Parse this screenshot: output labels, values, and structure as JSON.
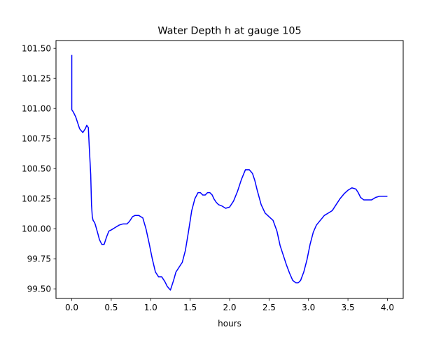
{
  "chart_data": {
    "type": "line",
    "title": "Water Depth h at gauge 105",
    "xlabel": "hours",
    "ylabel": "",
    "xlim": [
      -0.2,
      4.2
    ],
    "ylim": [
      99.42,
      101.565
    ],
    "xticks": [
      0.0,
      0.5,
      1.0,
      1.5,
      2.0,
      2.5,
      3.0,
      3.5,
      4.0
    ],
    "xtick_labels": [
      "0.0",
      "0.5",
      "1.0",
      "1.5",
      "2.0",
      "2.5",
      "3.0",
      "3.5",
      "4.0"
    ],
    "yticks": [
      99.5,
      99.75,
      100.0,
      100.25,
      100.5,
      100.75,
      101.0,
      101.25,
      101.5
    ],
    "ytick_labels": [
      "99.50",
      "99.75",
      "100.00",
      "100.25",
      "100.50",
      "100.75",
      "101.00",
      "101.25",
      "101.50"
    ],
    "grid": false,
    "legend": "none",
    "series": [
      {
        "color": "#0000ff",
        "x": [
          0.0,
          0.0,
          0.02,
          0.05,
          0.1,
          0.14,
          0.17,
          0.19,
          0.21,
          0.22,
          0.24,
          0.25,
          0.26,
          0.27,
          0.29,
          0.3,
          0.33,
          0.35,
          0.38,
          0.41,
          0.44,
          0.47,
          0.5,
          0.55,
          0.6,
          0.65,
          0.7,
          0.73,
          0.77,
          0.8,
          0.85,
          0.9,
          0.94,
          0.98,
          1.02,
          1.06,
          1.1,
          1.14,
          1.18,
          1.21,
          1.25,
          1.29,
          1.32,
          1.36,
          1.4,
          1.44,
          1.48,
          1.52,
          1.56,
          1.6,
          1.63,
          1.66,
          1.69,
          1.72,
          1.75,
          1.78,
          1.8,
          1.83,
          1.86,
          1.9,
          1.95,
          2.0,
          2.05,
          2.1,
          2.15,
          2.2,
          2.25,
          2.29,
          2.32,
          2.35,
          2.4,
          2.45,
          2.5,
          2.55,
          2.6,
          2.64,
          2.68,
          2.72,
          2.76,
          2.8,
          2.84,
          2.87,
          2.9,
          2.94,
          2.98,
          3.02,
          3.06,
          3.1,
          3.15,
          3.2,
          3.25,
          3.3,
          3.35,
          3.4,
          3.45,
          3.5,
          3.55,
          3.6,
          3.63,
          3.66,
          3.7,
          3.75,
          3.8,
          3.85,
          3.9,
          3.95,
          4.0
        ],
        "y": [
          101.445,
          100.99,
          100.97,
          100.93,
          100.83,
          100.8,
          100.83,
          100.86,
          100.84,
          100.7,
          100.45,
          100.2,
          100.1,
          100.07,
          100.05,
          100.03,
          99.96,
          99.91,
          99.87,
          99.87,
          99.93,
          99.98,
          99.99,
          100.01,
          100.03,
          100.04,
          100.04,
          100.06,
          100.1,
          100.11,
          100.11,
          100.09,
          100.0,
          99.88,
          99.75,
          99.64,
          99.6,
          99.6,
          99.56,
          99.52,
          99.49,
          99.57,
          99.64,
          99.68,
          99.72,
          99.82,
          99.98,
          100.15,
          100.25,
          100.3,
          100.3,
          100.28,
          100.28,
          100.3,
          100.3,
          100.28,
          100.25,
          100.22,
          100.2,
          100.19,
          100.17,
          100.18,
          100.23,
          100.31,
          100.41,
          100.49,
          100.49,
          100.46,
          100.4,
          100.32,
          100.2,
          100.13,
          100.1,
          100.07,
          99.98,
          99.86,
          99.78,
          99.7,
          99.63,
          99.57,
          99.55,
          99.55,
          99.57,
          99.64,
          99.74,
          99.87,
          99.97,
          100.03,
          100.07,
          100.11,
          100.13,
          100.15,
          100.2,
          100.25,
          100.29,
          100.32,
          100.34,
          100.33,
          100.3,
          100.26,
          100.24,
          100.24,
          100.24,
          100.26,
          100.27,
          100.27,
          100.27
        ]
      }
    ]
  }
}
